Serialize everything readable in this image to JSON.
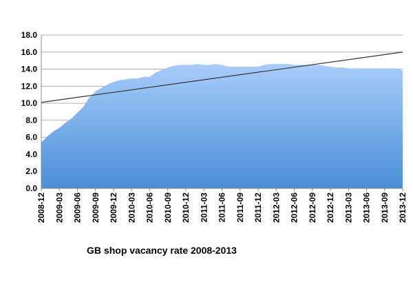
{
  "chart_data": {
    "type": "area",
    "title": "GB shop vacancy rate 2008-2013",
    "xlabel": "",
    "ylabel": "",
    "ylim": [
      0,
      18
    ],
    "yticks": [
      "0.0",
      "2.0",
      "4.0",
      "6.0",
      "8.0",
      "10.0",
      "12.0",
      "14.0",
      "16.0",
      "18.0"
    ],
    "grid": true,
    "legend": "none",
    "colors": {
      "area_top": "#a8ccfa",
      "area_bottom": "#4a8fd8",
      "trendline": "#333333",
      "grid": "#b0b0b0"
    },
    "categories": [
      "2008-12",
      "2009-01",
      "2009-02",
      "2009-03",
      "2009-04",
      "2009-05",
      "2009-06",
      "2009-07",
      "2009-08",
      "2009-09",
      "2009-10",
      "2009-11",
      "2009-12",
      "2010-01",
      "2010-02",
      "2010-03",
      "2010-04",
      "2010-05",
      "2010-06",
      "2010-07",
      "2010-08",
      "2010-09",
      "2010-10",
      "2010-11",
      "2010-12",
      "2011-01",
      "2011-02",
      "2011-03",
      "2011-04",
      "2011-05",
      "2011-06",
      "2011-07",
      "2011-08",
      "2011-09",
      "2011-10",
      "2011-11",
      "2011-12",
      "2012-01",
      "2012-02",
      "2012-03",
      "2012-04",
      "2012-05",
      "2012-06",
      "2012-07",
      "2012-08",
      "2012-09",
      "2012-10",
      "2012-11",
      "2012-12",
      "2013-01",
      "2013-02",
      "2013-03",
      "2013-04",
      "2013-05",
      "2013-06",
      "2013-07",
      "2013-08",
      "2013-09",
      "2013-10",
      "2013-11",
      "2013-12"
    ],
    "xticks": [
      "2008-12",
      "2009-03",
      "2009-06",
      "2009-09",
      "2009-12",
      "2010-03",
      "2010-06",
      "2010-09",
      "2010-12",
      "2011-03",
      "2011-06",
      "2011-09",
      "2011-12",
      "2012-03",
      "2012-06",
      "2012-09",
      "2012-12",
      "2013-03",
      "2013-06",
      "2013-09",
      "2013-12"
    ],
    "series": [
      {
        "values": [
          5.4,
          6.1,
          6.7,
          7.1,
          7.7,
          8.2,
          8.9,
          9.6,
          10.7,
          11.4,
          11.8,
          12.2,
          12.5,
          12.7,
          12.8,
          12.9,
          12.9,
          13.1,
          13.1,
          13.6,
          13.9,
          14.2,
          14.4,
          14.5,
          14.5,
          14.5,
          14.6,
          14.5,
          14.5,
          14.6,
          14.5,
          14.3,
          14.3,
          14.3,
          14.3,
          14.3,
          14.3,
          14.5,
          14.6,
          14.6,
          14.6,
          14.6,
          14.5,
          14.5,
          14.5,
          14.5,
          14.5,
          14.4,
          14.3,
          14.2,
          14.2,
          14.1,
          14.1,
          14.1,
          14.1,
          14.1,
          14.1,
          14.1,
          14.1,
          14.1,
          13.8
        ]
      }
    ],
    "trendline": {
      "start": 10.1,
      "end": 16.0
    }
  }
}
